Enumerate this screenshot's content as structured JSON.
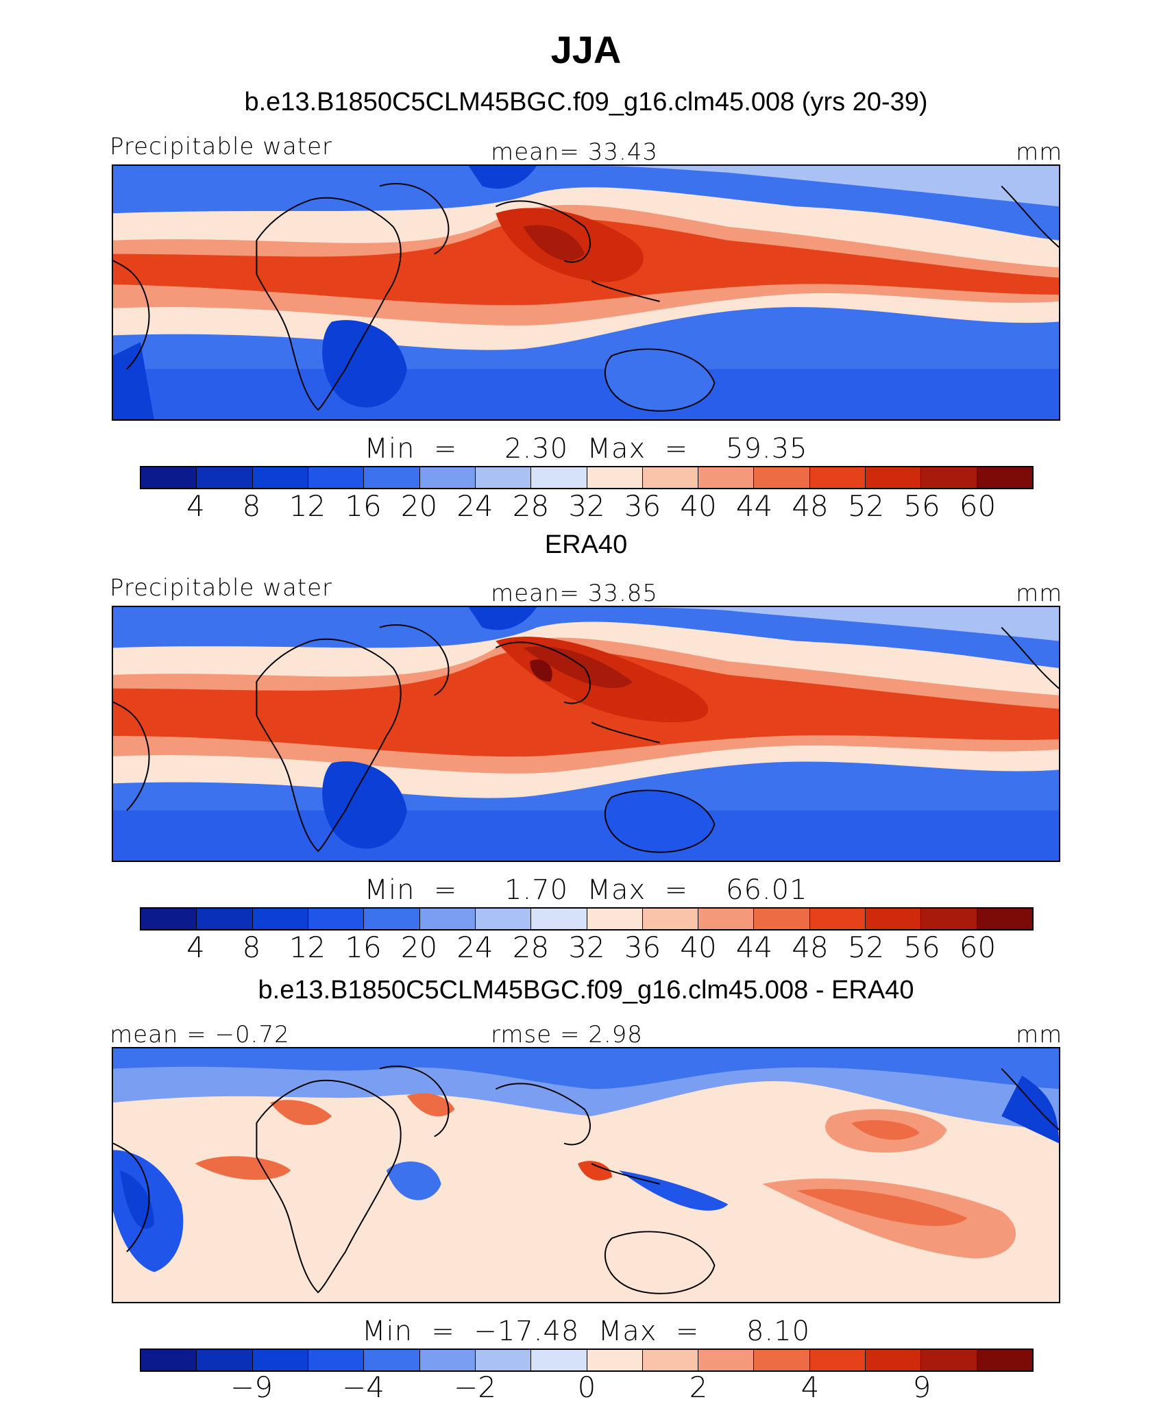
{
  "figure_title": "JJA",
  "panels": [
    {
      "title": "b.e13.B1850C5CLM45BGC.f09_g16.clm45.008 (yrs 20-39)",
      "left_label": "Precipitable water",
      "center_label": "mean=   33.43",
      "right_label": "mm",
      "minmax": "Min  =     2.30  Max  =    59.35",
      "ticks": [
        "4",
        "8",
        "12",
        "16",
        "20",
        "24",
        "28",
        "32",
        "36",
        "40",
        "44",
        "48",
        "52",
        "56",
        "60"
      ]
    },
    {
      "title": "ERA40",
      "left_label": "Precipitable water",
      "center_label": "mean=   33.85",
      "right_label": "mm",
      "minmax": "Min  =     1.70  Max  =    66.01",
      "ticks": [
        "4",
        "8",
        "12",
        "16",
        "20",
        "24",
        "28",
        "32",
        "36",
        "40",
        "44",
        "48",
        "52",
        "56",
        "60"
      ]
    },
    {
      "title": "b.e13.B1850C5CLM45BGC.f09_g16.clm45.008 - ERA40",
      "left_label": "mean =   −0.72",
      "center_label": "rmse =    2.98",
      "right_label": "mm",
      "minmax": "Min  =  −17.48  Max  =     8.10",
      "ticks": [
        "−9",
        "−4",
        "−2",
        "0",
        "2",
        "4",
        "9"
      ]
    }
  ],
  "colorbar_colors": [
    "#0b1a8c",
    "#0a2fb8",
    "#0b3fd6",
    "#1f55e8",
    "#3d72ee",
    "#7a9ff2",
    "#a9c1f5",
    "#d6e2fa",
    "#fde5d6",
    "#f9c4a8",
    "#f4997a",
    "#ee6c44",
    "#e5421b",
    "#cf2a0c",
    "#a81a0a",
    "#7c0a06"
  ]
}
